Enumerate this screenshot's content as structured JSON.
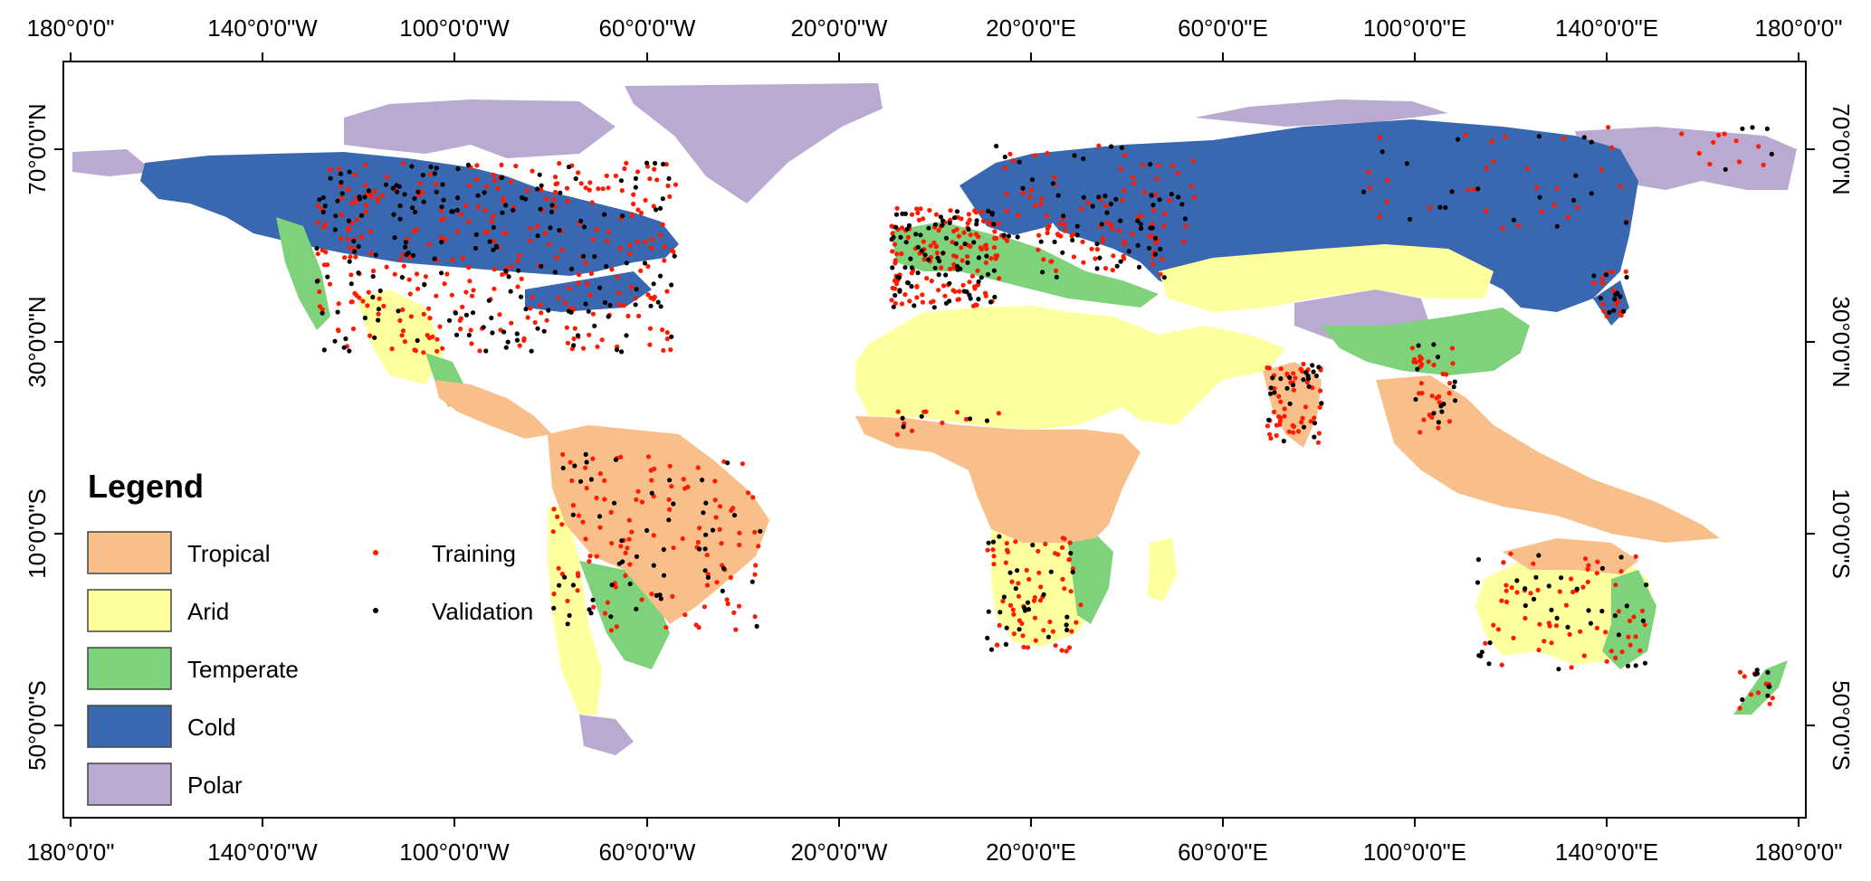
{
  "colors": {
    "tropical": "#f8bf8b",
    "arid": "#feff9d",
    "temperate": "#7ed27c",
    "cold": "#3a68b0",
    "polar": "#baa9d1",
    "training": "#ff1a00",
    "validation": "#000000"
  },
  "axes": {
    "x_ticks": [
      "180°0'0\"",
      "140°0'0\"W",
      "100°0'0\"W",
      "60°0'0\"W",
      "20°0'0\"W",
      "20°0'0\"E",
      "60°0'0\"E",
      "100°0'0\"E",
      "140°0'0\"E",
      "180°0'0\""
    ],
    "y_ticks": [
      "70°0'0\"N",
      "30°0'0\"N",
      "10°0'0\"S",
      "50°0'0\"S"
    ]
  },
  "legend": {
    "title": "Legend",
    "classes": [
      {
        "label": "Tropical",
        "color": "#f8bf8b"
      },
      {
        "label": "Arid",
        "color": "#feff9d"
      },
      {
        "label": "Temperate",
        "color": "#7ed27c"
      },
      {
        "label": "Cold",
        "color": "#3a68b0"
      },
      {
        "label": "Polar",
        "color": "#baa9d1"
      }
    ],
    "points": [
      {
        "label": "Training",
        "color": "#ff1a00"
      },
      {
        "label": "Validation",
        "color": "#000000"
      }
    ]
  }
}
